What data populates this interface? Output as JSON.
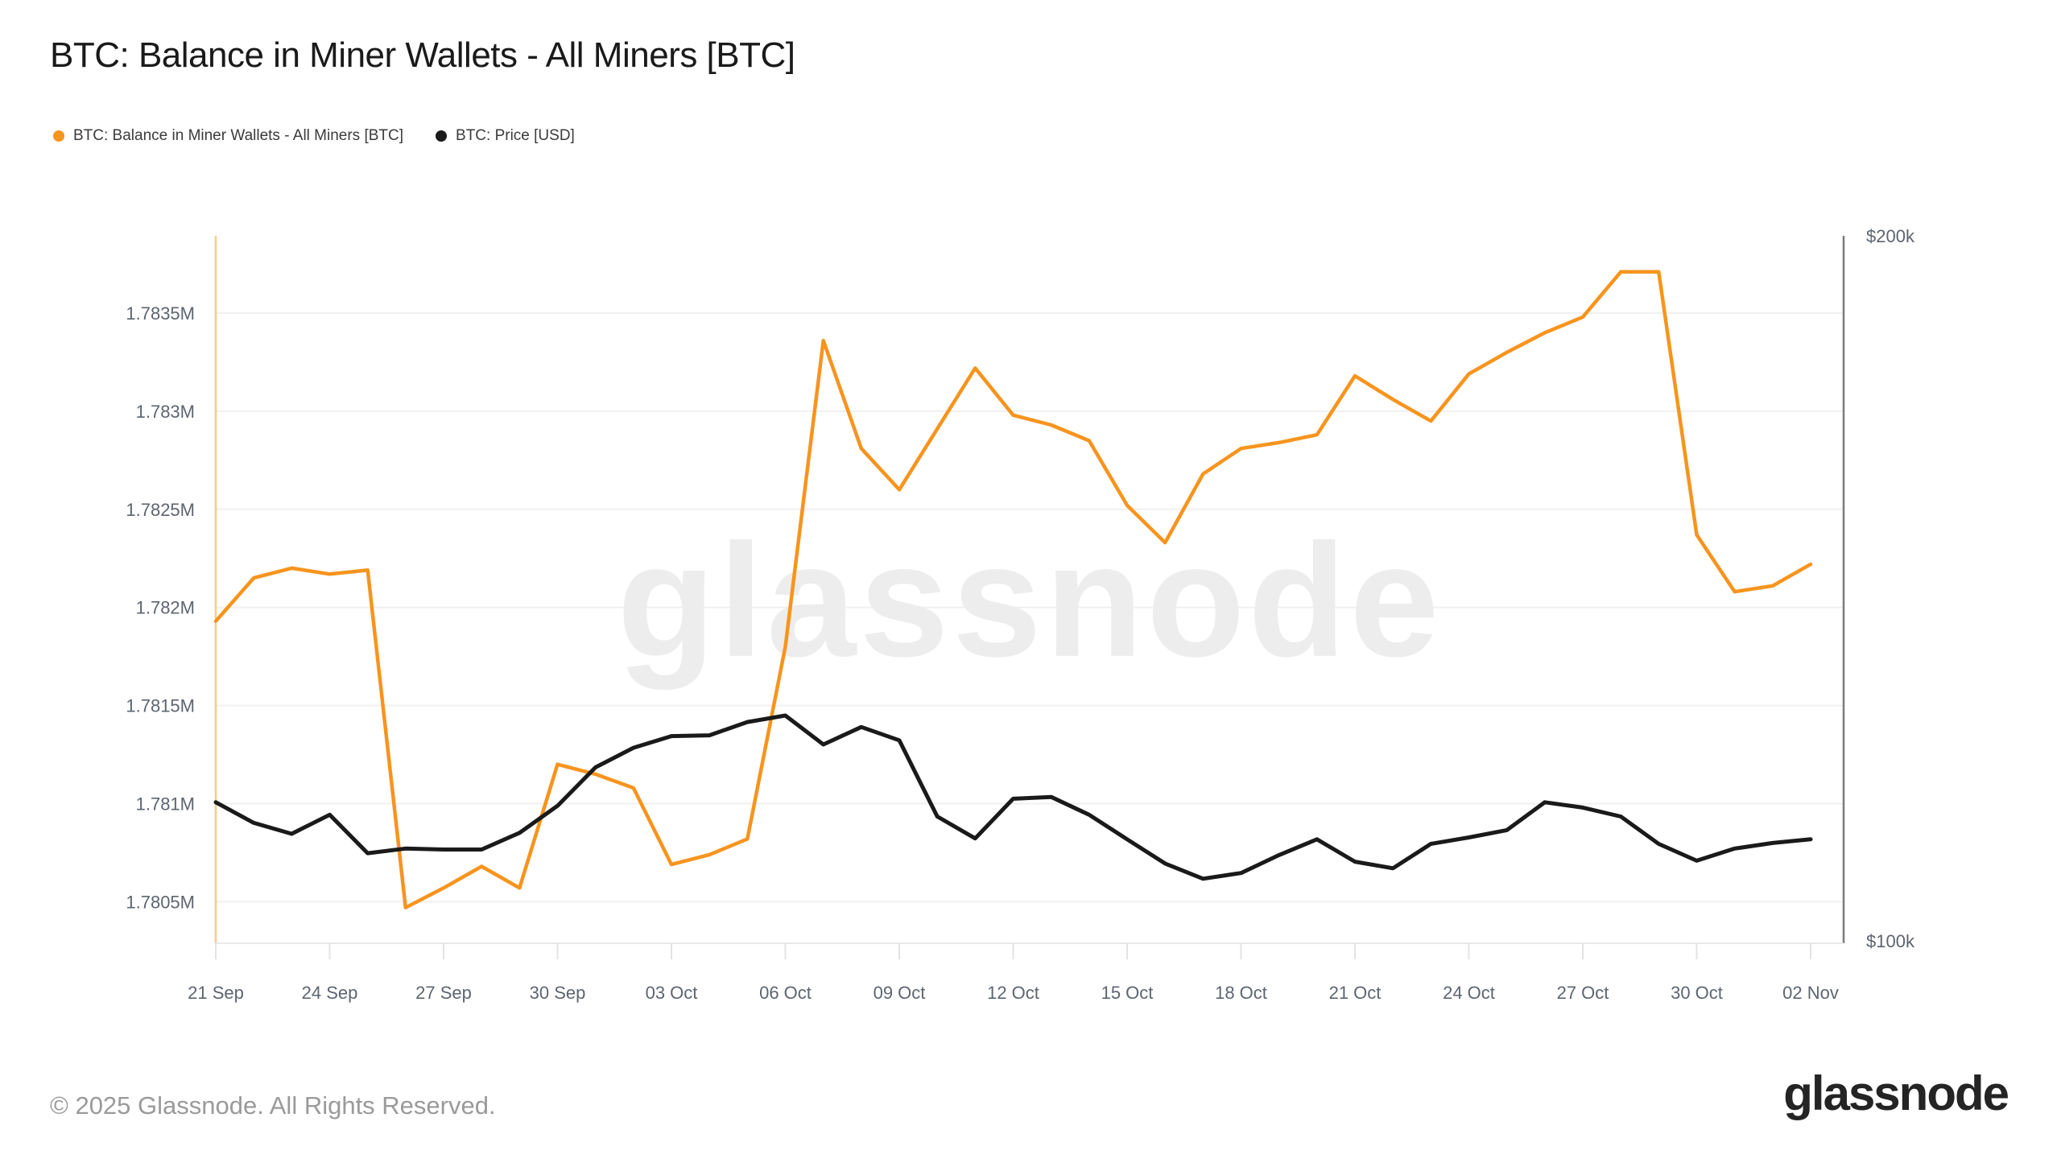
{
  "header": {
    "title": "BTC: Balance in Miner Wallets - All Miners [BTC]"
  },
  "legend": [
    {
      "label": "BTC: Balance in Miner Wallets - All Miners [BTC]",
      "color": "#f7941e"
    },
    {
      "label": "BTC: Price [USD]",
      "color": "#1a1a1a"
    }
  ],
  "watermark": "glassnode",
  "footer": {
    "copyright": "© 2025 Glassnode. All Rights Reserved.",
    "logo": "glassnode"
  },
  "colors": {
    "balance_line": "#f7941e",
    "price_line": "#1a1a1a",
    "gridline": "#f0f0f0",
    "left_axis_line": "#f9c98c",
    "right_axis_line": "#7a7a7a",
    "bottom_axis_line": "#e8e8e8",
    "tick_mark": "#e3e3e3",
    "axis_text": "#5d6570",
    "watermark_text": "#ededed"
  },
  "chart_data": {
    "type": "line",
    "title": "BTC: Balance in Miner Wallets - All Miners [BTC]",
    "grid": true,
    "legend_position": "top-left",
    "dates": [
      "21 Sep",
      "22 Sep",
      "23 Sep",
      "24 Sep",
      "25 Sep",
      "26 Sep",
      "27 Sep",
      "28 Sep",
      "29 Sep",
      "30 Sep",
      "01 Oct",
      "02 Oct",
      "03 Oct",
      "04 Oct",
      "05 Oct",
      "06 Oct",
      "07 Oct",
      "08 Oct",
      "09 Oct",
      "10 Oct",
      "11 Oct",
      "12 Oct",
      "13 Oct",
      "14 Oct",
      "15 Oct",
      "16 Oct",
      "17 Oct",
      "18 Oct",
      "19 Oct",
      "20 Oct",
      "21 Oct",
      "22 Oct",
      "23 Oct",
      "24 Oct",
      "25 Oct",
      "26 Oct",
      "27 Oct",
      "28 Oct",
      "29 Oct",
      "30 Oct",
      "31 Oct",
      "01 Nov",
      "02 Nov"
    ],
    "x_tick_labels": [
      "21 Sep",
      "24 Sep",
      "27 Sep",
      "30 Sep",
      "03 Oct",
      "06 Oct",
      "09 Oct",
      "12 Oct",
      "15 Oct",
      "18 Oct",
      "21 Oct",
      "24 Oct",
      "27 Oct",
      "30 Oct",
      "02 Nov"
    ],
    "x_tick_indices": [
      0,
      3,
      6,
      9,
      12,
      15,
      18,
      21,
      24,
      27,
      30,
      33,
      36,
      39,
      42
    ],
    "left_axis": {
      "scale": "linear",
      "unit": "BTC (millions)",
      "tick_labels": [
        "1.7835M",
        "1.783M",
        "1.7825M",
        "1.782M",
        "1.7815M",
        "1.781M",
        "1.7805M"
      ],
      "tick_values": [
        1.7835,
        1.783,
        1.7825,
        1.782,
        1.7815,
        1.781,
        1.7805
      ]
    },
    "right_axis": {
      "scale": "log",
      "unit": "USD",
      "tick_labels": [
        "$200k",
        "$100k"
      ],
      "tick_values": [
        200,
        100
      ]
    },
    "series": [
      {
        "name": "BTC: Balance in Miner Wallets - All Miners [BTC]",
        "axis": "left",
        "color": "#f7941e",
        "unit": "M BTC",
        "values": [
          1.78193,
          1.78215,
          1.7822,
          1.78217,
          1.78219,
          1.78047,
          1.78057,
          1.78068,
          1.78057,
          1.7812,
          1.78115,
          1.78108,
          1.78069,
          1.78074,
          1.78082,
          1.7818,
          1.78336,
          1.78281,
          1.7826,
          1.78291,
          1.78322,
          1.78298,
          1.78293,
          1.78285,
          1.78252,
          1.78233,
          1.78268,
          1.78281,
          1.78284,
          1.78288,
          1.78318,
          1.78306,
          1.78295,
          1.78319,
          1.7833,
          1.7834,
          1.78348,
          1.78371,
          1.78371,
          1.78237,
          1.78208,
          1.78211,
          1.78222
        ]
      },
      {
        "name": "BTC: Price [USD]",
        "axis": "right",
        "color": "#1a1a1a",
        "unit": "k USD",
        "values": [
          114.6,
          112.3,
          111.1,
          113.2,
          109.0,
          109.5,
          109.4,
          109.4,
          111.2,
          114.2,
          118.6,
          120.9,
          122.3,
          122.4,
          124.0,
          124.8,
          121.3,
          123.4,
          121.8,
          113.0,
          110.6,
          115.0,
          115.2,
          113.2,
          110.5,
          107.9,
          106.3,
          106.9,
          108.8,
          110.5,
          108.1,
          107.4,
          110.0,
          110.7,
          111.5,
          114.6,
          114.0,
          113.0,
          110.0,
          108.2,
          109.5,
          110.1,
          110.5
        ]
      }
    ]
  }
}
